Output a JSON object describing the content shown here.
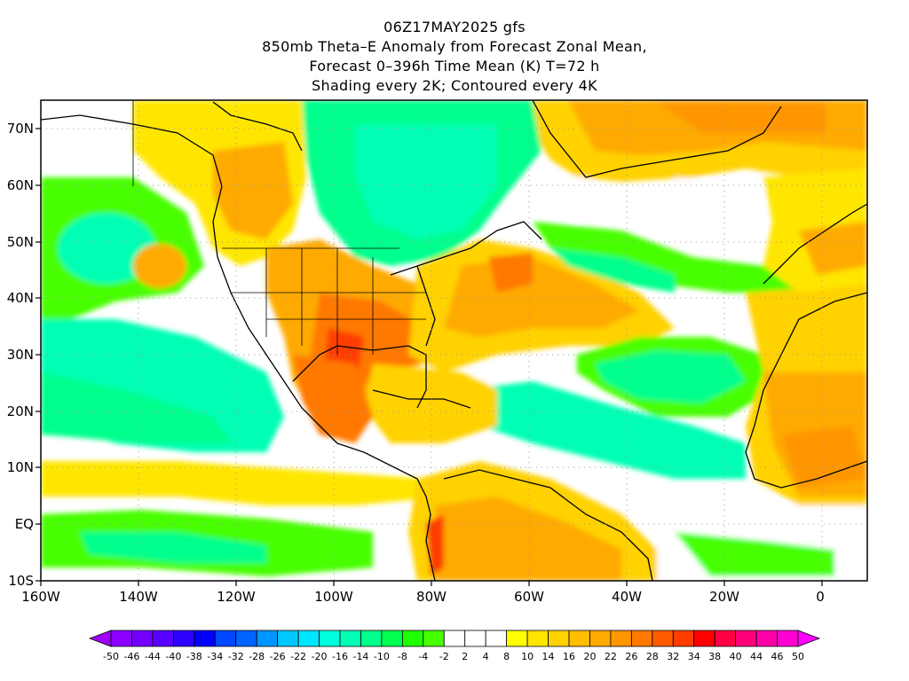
{
  "titles": {
    "line1": "06Z17MAY2025 gfs",
    "line2": "850mb Theta–E Anomaly from Forecast Zonal Mean,",
    "line3": "Forecast 0–396h Time Mean (K) T=72 h",
    "line4": "Shading every 2K; Contoured every 4K"
  },
  "map": {
    "lon_labels": [
      "160W",
      "140W",
      "120W",
      "100W",
      "80W",
      "60W",
      "40W",
      "20W",
      "0"
    ],
    "lat_labels": [
      "70N",
      "60N",
      "50N",
      "40N",
      "30N",
      "20N",
      "10N",
      "EQ",
      "10S"
    ],
    "lon_range_deg": [
      -160,
      10
    ],
    "lat_range_deg": [
      -10,
      75
    ]
  },
  "colorbar": {
    "labels": [
      "-50",
      "-46",
      "-44",
      "-40",
      "-38",
      "-34",
      "-32",
      "-28",
      "-26",
      "-22",
      "-20",
      "-16",
      "-14",
      "-10",
      "-8",
      "-4",
      "-2",
      "2",
      "4",
      "8",
      "10",
      "14",
      "16",
      "20",
      "22",
      "26",
      "28",
      "32",
      "34",
      "38",
      "40",
      "44",
      "46",
      "50"
    ],
    "colors": [
      "#a000ff",
      "#8c00ff",
      "#7300ff",
      "#5a00ff",
      "#2d00ff",
      "#0000ff",
      "#0048ff",
      "#0064ff",
      "#0096ff",
      "#00c8ff",
      "#00e6ff",
      "#00ffdc",
      "#00ffb4",
      "#00ff8c",
      "#00ff50",
      "#1eff00",
      "#46ff00",
      "#ffffff",
      "#ffffff",
      "#ffffff",
      "#ffff00",
      "#ffe600",
      "#ffd200",
      "#ffbe00",
      "#ffaa00",
      "#ff9600",
      "#ff7800",
      "#ff5a00",
      "#ff3c00",
      "#ff0000",
      "#ff0046",
      "#ff0078",
      "#ff00aa",
      "#ff00d2",
      "#ff00ff"
    ]
  }
}
